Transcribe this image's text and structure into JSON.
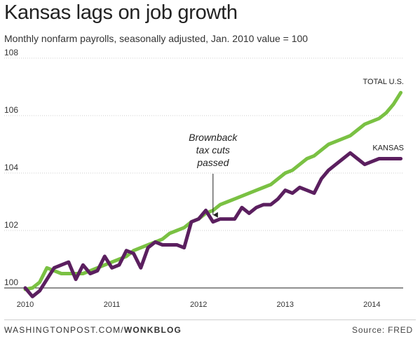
{
  "title": "Kansas lags on job growth",
  "subtitle": "Monthly nonfarm payrolls, seasonally adjusted, Jan. 2010 value = 100",
  "footer": {
    "credit_prefix": "WASHINGTONPOST.COM/",
    "credit_blog": "WONKBLOG",
    "source": "Source: FRED"
  },
  "chart_data": {
    "type": "line",
    "title": "Kansas lags on job growth",
    "subtitle": "Monthly nonfarm payrolls, seasonally adjusted, Jan. 2010 value = 100",
    "xlabel": "",
    "ylabel": "",
    "x_ticks": [
      "2010",
      "2011",
      "2012",
      "2013",
      "2014"
    ],
    "y_ticks": [
      100,
      102,
      104,
      106,
      108
    ],
    "ylim": [
      100,
      108
    ],
    "grid": "horizontal",
    "legend": "direct labels at line ends",
    "x": [
      "2010-01",
      "2010-02",
      "2010-03",
      "2010-04",
      "2010-05",
      "2010-06",
      "2010-07",
      "2010-08",
      "2010-09",
      "2010-10",
      "2010-11",
      "2010-12",
      "2011-01",
      "2011-02",
      "2011-03",
      "2011-04",
      "2011-05",
      "2011-06",
      "2011-07",
      "2011-08",
      "2011-09",
      "2011-10",
      "2011-11",
      "2011-12",
      "2012-01",
      "2012-02",
      "2012-03",
      "2012-04",
      "2012-05",
      "2012-06",
      "2012-07",
      "2012-08",
      "2012-09",
      "2012-10",
      "2012-11",
      "2012-12",
      "2013-01",
      "2013-02",
      "2013-03",
      "2013-04",
      "2013-05",
      "2013-06",
      "2013-07",
      "2013-08",
      "2013-09",
      "2013-10",
      "2013-11",
      "2013-12",
      "2014-01",
      "2014-02",
      "2014-03",
      "2014-04",
      "2014-05"
    ],
    "series": [
      {
        "name": "TOTAL U.S.",
        "color": "#7ac143",
        "values": [
          99.95,
          100.0,
          100.2,
          100.7,
          100.6,
          100.5,
          100.5,
          100.5,
          100.5,
          100.6,
          100.7,
          100.8,
          100.9,
          101.0,
          101.1,
          101.3,
          101.4,
          101.5,
          101.6,
          101.7,
          101.9,
          102.0,
          102.1,
          102.3,
          102.4,
          102.6,
          102.7,
          102.9,
          103.0,
          103.1,
          103.2,
          103.3,
          103.4,
          103.5,
          103.6,
          103.8,
          104.0,
          104.1,
          104.3,
          104.5,
          104.6,
          104.8,
          105.0,
          105.1,
          105.2,
          105.3,
          105.5,
          105.7,
          105.8,
          105.9,
          106.1,
          106.4,
          106.8
        ]
      },
      {
        "name": "KANSAS",
        "color": "#5b1f5f",
        "values": [
          100.0,
          99.7,
          99.9,
          100.3,
          100.7,
          100.8,
          100.9,
          100.3,
          100.8,
          100.5,
          100.6,
          101.1,
          100.7,
          100.8,
          101.3,
          101.2,
          100.7,
          101.4,
          101.6,
          101.5,
          101.5,
          101.5,
          101.4,
          102.3,
          102.4,
          102.7,
          102.3,
          102.4,
          102.4,
          102.4,
          102.8,
          102.6,
          102.8,
          102.9,
          102.9,
          103.1,
          103.4,
          103.3,
          103.5,
          103.4,
          103.3,
          103.8,
          104.1,
          104.3,
          104.5,
          104.7,
          104.5,
          104.3,
          104.4,
          104.5,
          104.5,
          104.5,
          104.5
        ]
      }
    ],
    "annotations": [
      {
        "lines": [
          "Brownback",
          "tax cuts",
          "passed"
        ],
        "x": "2012-03",
        "series": "KANSAS"
      }
    ]
  }
}
